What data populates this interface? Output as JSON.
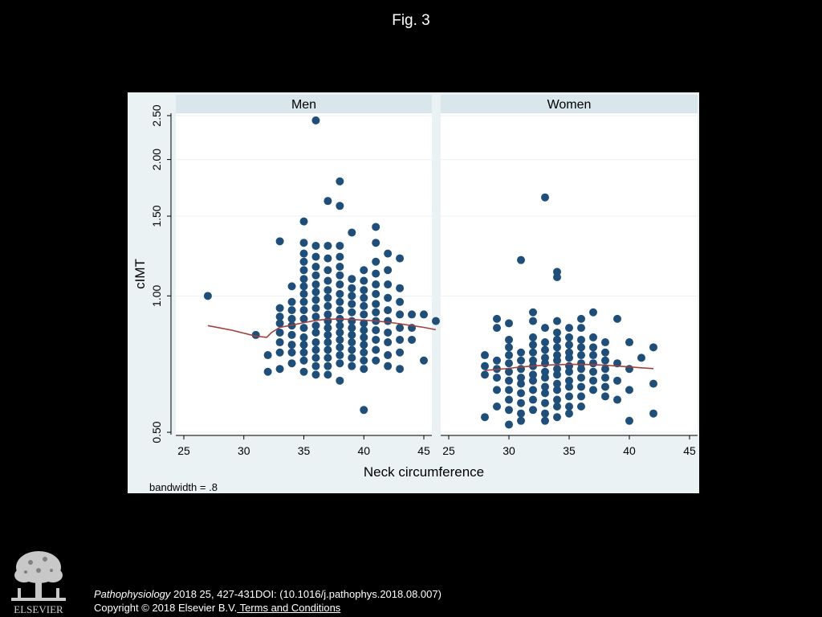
{
  "figure_title": "Fig. 3",
  "citation": {
    "journal": "Pathophysiology",
    "details": " 2018 25, 427-431DOI: (10.1016/j.pathophys.2018.08.007)",
    "copyright": "Copyright © 2018 Elsevier B.V.",
    "terms_link": " Terms and Conditions"
  },
  "logo": {
    "name": "ELSEVIER"
  },
  "colors": {
    "marker": "#1f4e79",
    "smoother": "#a0403e",
    "background": "#eaf2f3",
    "strip": "#d9e6eb",
    "page": "#000000"
  },
  "chart_data": {
    "type": "scatter",
    "xlabel": "Neck circumference",
    "ylabel": "cIMT",
    "note": "bandwidth = .8",
    "y_scale": "log",
    "xlim": [
      25,
      45
    ],
    "ylim": [
      0.5,
      2.5
    ],
    "xticks": [
      "25",
      "30",
      "35",
      "40",
      "45"
    ],
    "yticks": [
      {
        "value": 0.5,
        "label": "0.50"
      },
      {
        "value": 1.0,
        "label": "1.00"
      },
      {
        "value": 1.5,
        "label": "1.50"
      },
      {
        "value": 2.0,
        "label": "2.00"
      },
      {
        "value": 2.5,
        "label": "2.50"
      }
    ],
    "grid": true,
    "legend": "none",
    "panels": [
      {
        "title": "Men",
        "points": [
          [
            27,
            1.0
          ],
          [
            31,
            0.82
          ],
          [
            32,
            0.68
          ],
          [
            32,
            0.74
          ],
          [
            33,
            1.32
          ],
          [
            33,
            0.94
          ],
          [
            33,
            0.9
          ],
          [
            33,
            0.87
          ],
          [
            33,
            0.83
          ],
          [
            33,
            0.79
          ],
          [
            33,
            0.75
          ],
          [
            33,
            0.69
          ],
          [
            34,
            1.05
          ],
          [
            34,
            0.97
          ],
          [
            34,
            0.93
          ],
          [
            34,
            0.89
          ],
          [
            34,
            0.86
          ],
          [
            34,
            0.82
          ],
          [
            34,
            0.78
          ],
          [
            34,
            0.75
          ],
          [
            34,
            0.71
          ],
          [
            35,
            1.46
          ],
          [
            35,
            1.31
          ],
          [
            35,
            1.24
          ],
          [
            35,
            1.19
          ],
          [
            35,
            1.14
          ],
          [
            35,
            1.09
          ],
          [
            35,
            1.05
          ],
          [
            35,
            1.01
          ],
          [
            35,
            0.97
          ],
          [
            35,
            0.93
          ],
          [
            35,
            0.89
          ],
          [
            35,
            0.85
          ],
          [
            35,
            0.81
          ],
          [
            35,
            0.78
          ],
          [
            35,
            0.75
          ],
          [
            35,
            0.72
          ],
          [
            35,
            0.68
          ],
          [
            36,
            2.44
          ],
          [
            36,
            1.29
          ],
          [
            36,
            1.22
          ],
          [
            36,
            1.16
          ],
          [
            36,
            1.11
          ],
          [
            36,
            1.06
          ],
          [
            36,
            1.02
          ],
          [
            36,
            0.98
          ],
          [
            36,
            0.94
          ],
          [
            36,
            0.9
          ],
          [
            36,
            0.86
          ],
          [
            36,
            0.83
          ],
          [
            36,
            0.79
          ],
          [
            36,
            0.76
          ],
          [
            36,
            0.73
          ],
          [
            36,
            0.7
          ],
          [
            36,
            0.67
          ],
          [
            37,
            1.62
          ],
          [
            37,
            1.29
          ],
          [
            37,
            1.21
          ],
          [
            37,
            1.14
          ],
          [
            37,
            1.08
          ],
          [
            37,
            1.03
          ],
          [
            37,
            0.99
          ],
          [
            37,
            0.95
          ],
          [
            37,
            0.91
          ],
          [
            37,
            0.88
          ],
          [
            37,
            0.85
          ],
          [
            37,
            0.82
          ],
          [
            37,
            0.79
          ],
          [
            37,
            0.76
          ],
          [
            37,
            0.73
          ],
          [
            37,
            0.7
          ],
          [
            37,
            0.67
          ],
          [
            38,
            1.79
          ],
          [
            38,
            1.58
          ],
          [
            38,
            1.29
          ],
          [
            38,
            1.22
          ],
          [
            38,
            1.16
          ],
          [
            38,
            1.11
          ],
          [
            38,
            1.06
          ],
          [
            38,
            1.01
          ],
          [
            38,
            0.97
          ],
          [
            38,
            0.93
          ],
          [
            38,
            0.89
          ],
          [
            38,
            0.86
          ],
          [
            38,
            0.83
          ],
          [
            38,
            0.8
          ],
          [
            38,
            0.77
          ],
          [
            38,
            0.74
          ],
          [
            38,
            0.71
          ],
          [
            38,
            0.65
          ],
          [
            39,
            1.38
          ],
          [
            39,
            1.09
          ],
          [
            39,
            1.04
          ],
          [
            39,
            1.0
          ],
          [
            39,
            0.96
          ],
          [
            39,
            0.92
          ],
          [
            39,
            0.88
          ],
          [
            39,
            0.85
          ],
          [
            39,
            0.82
          ],
          [
            39,
            0.79
          ],
          [
            39,
            0.76
          ],
          [
            39,
            0.73
          ],
          [
            39,
            0.7
          ],
          [
            40,
            1.14
          ],
          [
            40,
            1.08
          ],
          [
            40,
            1.03
          ],
          [
            40,
            0.99
          ],
          [
            40,
            0.95
          ],
          [
            40,
            0.91
          ],
          [
            40,
            0.87
          ],
          [
            40,
            0.84
          ],
          [
            40,
            0.81
          ],
          [
            40,
            0.78
          ],
          [
            40,
            0.75
          ],
          [
            40,
            0.72
          ],
          [
            40,
            0.69
          ],
          [
            40,
            0.56
          ],
          [
            41,
            1.42
          ],
          [
            41,
            1.31
          ],
          [
            41,
            1.19
          ],
          [
            41,
            1.12
          ],
          [
            41,
            1.06
          ],
          [
            41,
            1.01
          ],
          [
            41,
            0.96
          ],
          [
            41,
            0.92
          ],
          [
            41,
            0.88
          ],
          [
            41,
            0.84
          ],
          [
            41,
            0.8
          ],
          [
            41,
            0.76
          ],
          [
            41,
            0.72
          ],
          [
            42,
            1.24
          ],
          [
            42,
            1.14
          ],
          [
            42,
            1.06
          ],
          [
            42,
            0.99
          ],
          [
            42,
            0.93
          ],
          [
            42,
            0.88
          ],
          [
            42,
            0.83
          ],
          [
            42,
            0.79
          ],
          [
            42,
            0.74
          ],
          [
            42,
            0.7
          ],
          [
            43,
            1.21
          ],
          [
            43,
            1.04
          ],
          [
            43,
            0.97
          ],
          [
            43,
            0.91
          ],
          [
            43,
            0.85
          ],
          [
            43,
            0.8
          ],
          [
            43,
            0.75
          ],
          [
            43,
            0.69
          ],
          [
            44,
            0.91
          ],
          [
            44,
            0.85
          ],
          [
            44,
            0.8
          ],
          [
            45,
            0.91
          ],
          [
            45,
            0.72
          ],
          [
            46,
            0.88
          ]
        ],
        "smoother": {
          "x": [
            27,
            29,
            31,
            31.9,
            32.3,
            33,
            34,
            35,
            36,
            37,
            38,
            39,
            40,
            41,
            42,
            43,
            44,
            45,
            46
          ],
          "y": [
            0.86,
            0.84,
            0.815,
            0.81,
            0.83,
            0.852,
            0.862,
            0.873,
            0.883,
            0.888,
            0.889,
            0.887,
            0.884,
            0.88,
            0.875,
            0.868,
            0.86,
            0.852,
            0.842
          ]
        }
      },
      {
        "title": "Women",
        "points": [
          [
            28,
            0.74
          ],
          [
            28,
            0.7
          ],
          [
            28,
            0.67
          ],
          [
            28,
            0.54
          ],
          [
            29,
            0.89
          ],
          [
            29,
            0.85
          ],
          [
            29,
            0.72
          ],
          [
            29,
            0.69
          ],
          [
            29,
            0.66
          ],
          [
            29,
            0.62
          ],
          [
            29,
            0.57
          ],
          [
            30,
            0.87
          ],
          [
            30,
            0.8
          ],
          [
            30,
            0.77
          ],
          [
            30,
            0.74
          ],
          [
            30,
            0.71
          ],
          [
            30,
            0.68
          ],
          [
            30,
            0.65
          ],
          [
            30,
            0.62
          ],
          [
            30,
            0.59
          ],
          [
            30,
            0.56
          ],
          [
            30,
            0.52
          ],
          [
            31,
            1.2
          ],
          [
            31,
            0.75
          ],
          [
            31,
            0.72
          ],
          [
            31,
            0.69
          ],
          [
            31,
            0.66
          ],
          [
            31,
            0.64
          ],
          [
            31,
            0.61
          ],
          [
            31,
            0.58
          ],
          [
            31,
            0.55
          ],
          [
            31,
            0.53
          ],
          [
            32,
            0.92
          ],
          [
            32,
            0.88
          ],
          [
            32,
            0.81
          ],
          [
            32,
            0.78
          ],
          [
            32,
            0.75
          ],
          [
            32,
            0.72
          ],
          [
            32,
            0.7
          ],
          [
            32,
            0.67
          ],
          [
            32,
            0.65
          ],
          [
            32,
            0.62
          ],
          [
            32,
            0.59
          ],
          [
            32,
            0.56
          ],
          [
            33,
            1.65
          ],
          [
            33,
            0.85
          ],
          [
            33,
            0.79
          ],
          [
            33,
            0.76
          ],
          [
            33,
            0.73
          ],
          [
            33,
            0.71
          ],
          [
            33,
            0.68
          ],
          [
            33,
            0.66
          ],
          [
            33,
            0.63
          ],
          [
            33,
            0.61
          ],
          [
            33,
            0.58
          ],
          [
            33,
            0.55
          ],
          [
            33,
            0.53
          ],
          [
            34,
            1.13
          ],
          [
            34,
            1.1
          ],
          [
            34,
            0.88
          ],
          [
            34,
            0.83
          ],
          [
            34,
            0.8
          ],
          [
            34,
            0.77
          ],
          [
            34,
            0.74
          ],
          [
            34,
            0.72
          ],
          [
            34,
            0.69
          ],
          [
            34,
            0.67
          ],
          [
            34,
            0.64
          ],
          [
            34,
            0.62
          ],
          [
            34,
            0.59
          ],
          [
            34,
            0.57
          ],
          [
            34,
            0.54
          ],
          [
            35,
            0.85
          ],
          [
            35,
            0.81
          ],
          [
            35,
            0.78
          ],
          [
            35,
            0.75
          ],
          [
            35,
            0.73
          ],
          [
            35,
            0.7
          ],
          [
            35,
            0.68
          ],
          [
            35,
            0.65
          ],
          [
            35,
            0.63
          ],
          [
            35,
            0.6
          ],
          [
            35,
            0.57
          ],
          [
            35,
            0.55
          ],
          [
            36,
            0.89
          ],
          [
            36,
            0.85
          ],
          [
            36,
            0.8
          ],
          [
            36,
            0.77
          ],
          [
            36,
            0.74
          ],
          [
            36,
            0.71
          ],
          [
            36,
            0.69
          ],
          [
            36,
            0.66
          ],
          [
            36,
            0.63
          ],
          [
            36,
            0.6
          ],
          [
            36,
            0.57
          ],
          [
            37,
            0.92
          ],
          [
            37,
            0.81
          ],
          [
            37,
            0.77
          ],
          [
            37,
            0.74
          ],
          [
            37,
            0.71
          ],
          [
            37,
            0.68
          ],
          [
            37,
            0.65
          ],
          [
            37,
            0.62
          ],
          [
            38,
            0.79
          ],
          [
            38,
            0.75
          ],
          [
            38,
            0.72
          ],
          [
            38,
            0.69
          ],
          [
            38,
            0.66
          ],
          [
            38,
            0.63
          ],
          [
            38,
            0.6
          ],
          [
            39,
            0.89
          ],
          [
            39,
            0.71
          ],
          [
            39,
            0.65
          ],
          [
            39,
            0.59
          ],
          [
            40,
            0.79
          ],
          [
            40,
            0.69
          ],
          [
            40,
            0.62
          ],
          [
            40,
            0.53
          ],
          [
            41,
            0.73
          ],
          [
            42,
            0.77
          ],
          [
            42,
            0.64
          ],
          [
            42,
            0.55
          ]
        ],
        "smoother": {
          "x": [
            28,
            29,
            30,
            31,
            32,
            33,
            34,
            35,
            36,
            37,
            38,
            39,
            40,
            41,
            42
          ],
          "y": [
            0.685,
            0.688,
            0.692,
            0.697,
            0.7,
            0.703,
            0.705,
            0.706,
            0.706,
            0.705,
            0.703,
            0.7,
            0.697,
            0.694,
            0.691
          ]
        }
      }
    ]
  }
}
